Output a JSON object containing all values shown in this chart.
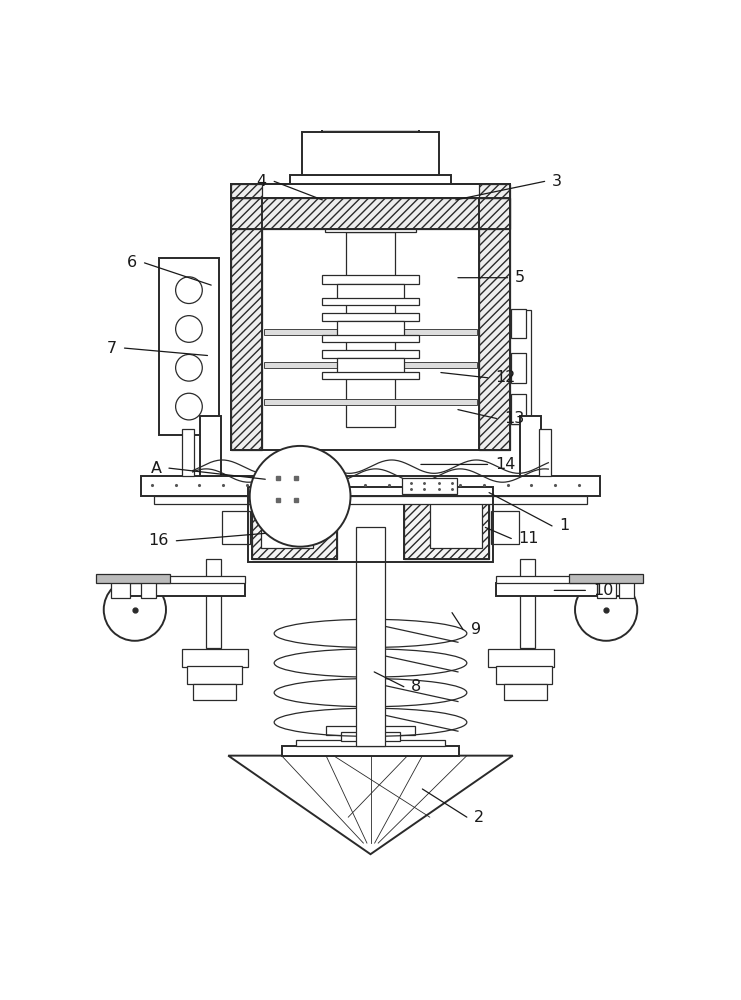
{
  "background_color": "#ffffff",
  "line_color": "#2a2a2a",
  "label_color": "#1a1a1a",
  "figsize": [
    7.41,
    10.0
  ],
  "dpi": 100,
  "labels_info": {
    "1": [
      0.755,
      0.465,
      0.66,
      0.51,
      "left"
    ],
    "2": [
      0.64,
      0.072,
      0.57,
      0.11,
      "left"
    ],
    "3": [
      0.745,
      0.93,
      0.615,
      0.905,
      "left"
    ],
    "4": [
      0.36,
      0.93,
      0.435,
      0.905,
      "right"
    ],
    "5": [
      0.695,
      0.8,
      0.618,
      0.8,
      "left"
    ],
    "6": [
      0.185,
      0.82,
      0.285,
      0.79,
      "right"
    ],
    "7": [
      0.158,
      0.705,
      0.28,
      0.695,
      "right"
    ],
    "8": [
      0.555,
      0.248,
      0.505,
      0.268,
      "left"
    ],
    "9": [
      0.635,
      0.325,
      0.61,
      0.348,
      "left"
    ],
    "10": [
      0.8,
      0.378,
      0.748,
      0.378,
      "left"
    ],
    "11": [
      0.7,
      0.448,
      0.655,
      0.463,
      "left"
    ],
    "12": [
      0.668,
      0.665,
      0.595,
      0.672,
      "left"
    ],
    "13": [
      0.68,
      0.61,
      0.618,
      0.622,
      "left"
    ],
    "14": [
      0.668,
      0.548,
      0.568,
      0.548,
      "left"
    ],
    "16": [
      0.228,
      0.445,
      0.358,
      0.455,
      "right"
    ],
    "A": [
      0.218,
      0.543,
      0.358,
      0.528,
      "right"
    ]
  }
}
